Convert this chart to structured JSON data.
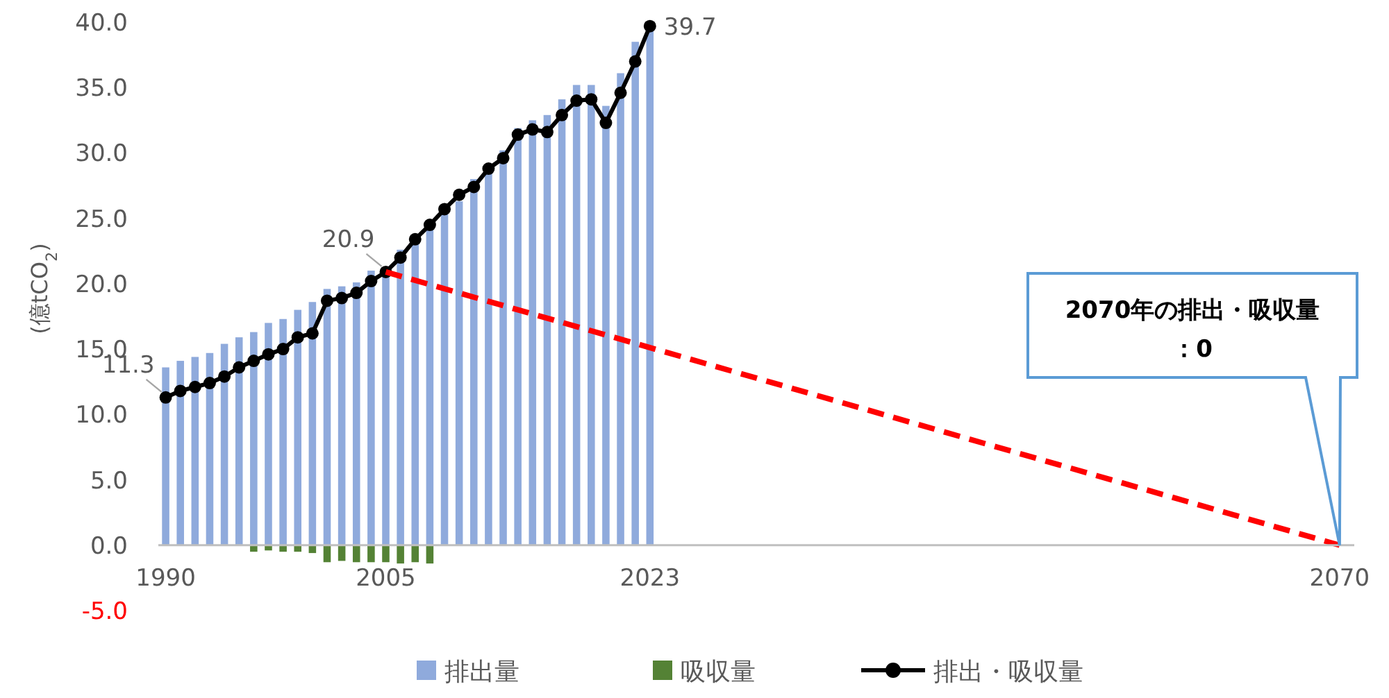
{
  "chart_data": {
    "type": "bar",
    "ylabel": "(億tCO$_{2}$)",
    "x": [
      1990,
      1991,
      1992,
      1993,
      1994,
      1995,
      1996,
      1997,
      1998,
      1999,
      2000,
      2001,
      2002,
      2003,
      2004,
      2005,
      2006,
      2007,
      2008,
      2009,
      2010,
      2011,
      2012,
      2013,
      2014,
      2015,
      2016,
      2017,
      2018,
      2019,
      2020,
      2021,
      2022,
      2023
    ],
    "xlim": [
      1989.5,
      2071
    ],
    "xticks": [
      1990,
      2005,
      2023,
      2070
    ],
    "ylim": [
      -5,
      40
    ],
    "yticks": [
      {
        "value": -5,
        "label": "-5.0"
      },
      {
        "value": 0,
        "label": "0.0"
      },
      {
        "value": 5,
        "label": "5.0"
      },
      {
        "value": 10,
        "label": "10.0"
      },
      {
        "value": 15,
        "label": "15.0"
      },
      {
        "value": 20,
        "label": "20.0"
      },
      {
        "value": 25,
        "label": "25.0"
      },
      {
        "value": 30,
        "label": "30.0"
      },
      {
        "value": 35,
        "label": "35.0"
      },
      {
        "value": 40,
        "label": "40.0"
      }
    ],
    "grid": false,
    "legend": "bottom",
    "series": [
      {
        "name": "排出量",
        "color": "#8faadc",
        "values": [
          13.6,
          14.1,
          14.4,
          14.7,
          15.4,
          15.9,
          16.3,
          17.0,
          17.3,
          18.0,
          18.6,
          19.6,
          19.8,
          20.1,
          21.0,
          21.2,
          22.6,
          23.3,
          24.2,
          25.3,
          26.3,
          28.0,
          29.0,
          30.2,
          31.9,
          32.5,
          32.9,
          34.1,
          35.2,
          35.2,
          33.6,
          36.1,
          38.5,
          39.7
        ]
      },
      {
        "name": "吸収量",
        "color": "#548235",
        "values": [
          null,
          null,
          null,
          null,
          null,
          null,
          -0.5,
          -0.4,
          -0.5,
          -0.5,
          -0.6,
          -1.3,
          -1.2,
          -1.3,
          -1.3,
          -1.3,
          -1.4,
          -1.3,
          -1.4,
          null,
          null,
          null,
          null,
          null,
          null,
          null,
          null,
          null,
          null,
          null,
          null,
          null,
          null,
          null
        ]
      },
      {
        "name": "排出・吸収量",
        "type": "line",
        "color": "#000000",
        "marker": "circle",
        "values": [
          11.3,
          11.8,
          12.1,
          12.4,
          12.9,
          13.6,
          14.1,
          14.6,
          15.0,
          15.9,
          16.2,
          18.7,
          18.9,
          19.3,
          20.2,
          20.9,
          22.0,
          23.4,
          24.5,
          25.7,
          26.8,
          27.4,
          28.8,
          29.6,
          31.4,
          31.8,
          31.6,
          32.9,
          34.0,
          34.1,
          32.3,
          34.6,
          37.0,
          39.7
        ],
        "value_labels": [
          "11.3",
          null,
          null,
          null,
          null,
          null,
          null,
          null,
          null,
          null,
          null,
          null,
          null,
          null,
          null,
          "20.9",
          null,
          null,
          null,
          null,
          null,
          null,
          null,
          null,
          null,
          null,
          null,
          null,
          null,
          null,
          null,
          null,
          null,
          "39.7"
        ]
      },
      {
        "type": "line",
        "x": [
          2005,
          2070
        ],
        "values": [
          20.9,
          0
        ],
        "color": "#ff0000",
        "line_style": "dashed",
        "marker": "none"
      }
    ],
    "annotations": [
      "2070年の排出・吸収量：0"
    ]
  }
}
